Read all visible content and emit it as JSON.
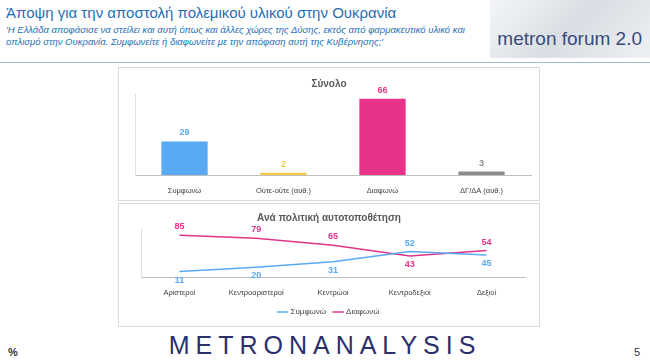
{
  "header": {
    "title": "Άποψη για την αποστολή πολεμικού υλικού στην Ουκρανία",
    "subtitle": "'Η Ελλάδα αποφάσισε να στείλει και αυτή όπως και άλλες χώρες της Δύσης, εκτός από φαρμακευτικό υλικό και οπλισμό στην Ουκρανία. Συμφωνείτε ή διαφωνείτε με την απόφαση αυτή της Κυβέρνησης;'",
    "logo": "metron forum 2.0"
  },
  "footer": {
    "brand": "METRONANALYSIS",
    "unit": "%",
    "page": "5"
  },
  "chart_data": [
    {
      "type": "bar",
      "title": "Σύνολο",
      "categories": [
        "Συμφωνώ",
        "Ούτε-ούτε (αυθ.)",
        "Διαφωνώ",
        "ΔΓ/ΔΑ (αυθ.)"
      ],
      "values": [
        29,
        2,
        66,
        3
      ],
      "colors": [
        "#5aa9f5",
        "#f7c948",
        "#e8338b",
        "#8c8c8c"
      ],
      "ylim": [
        0,
        70
      ],
      "grid": false,
      "data_labels": true,
      "tick_labels": "x"
    },
    {
      "type": "line",
      "title": "Ανά πολιτική αυτοτοποθέτηση",
      "categories": [
        "Αριστεροί",
        "Κεντροαριστεροί",
        "Κεντρώοι",
        "Κεντροδεξιοί",
        "Δεξιοί"
      ],
      "series": [
        {
          "name": "Συμφωνώ",
          "color": "#5aa9f5",
          "values": [
            11,
            20,
            31,
            52,
            45
          ]
        },
        {
          "name": "Διαφωνώ",
          "color": "#e0348a",
          "values": [
            85,
            79,
            65,
            43,
            54
          ]
        }
      ],
      "ylim": [
        0,
        100
      ],
      "grid": false,
      "data_labels": true,
      "tick_labels": "x",
      "legend": "bottom",
      "marker": "none"
    }
  ]
}
